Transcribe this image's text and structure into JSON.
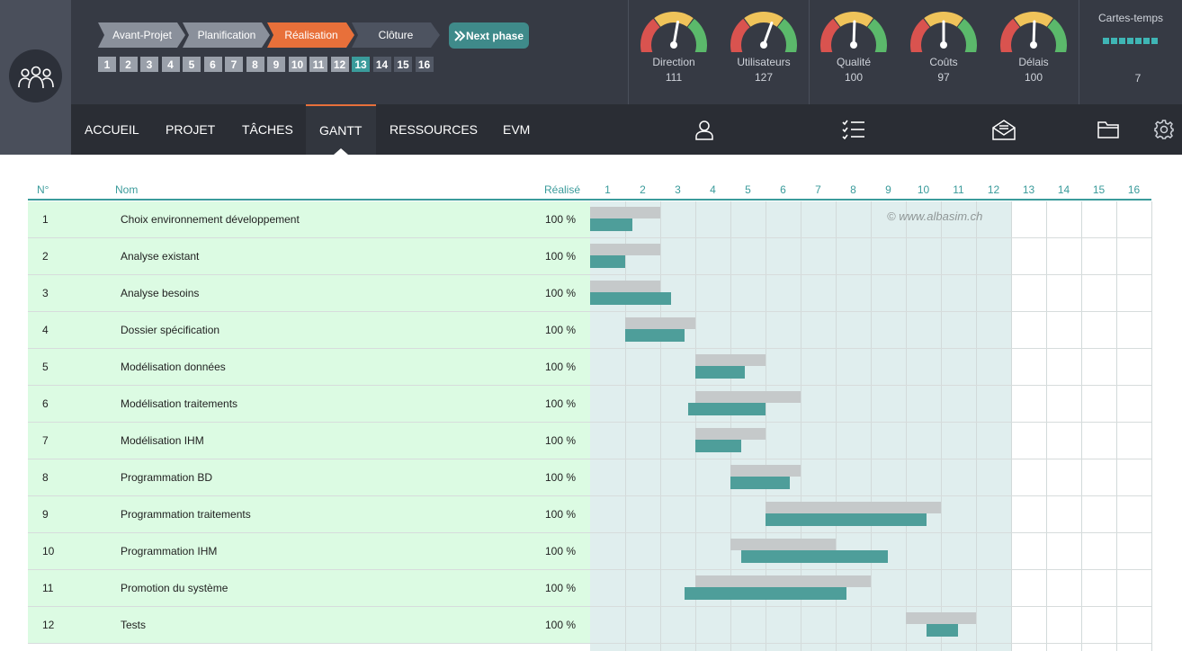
{
  "header": {
    "phases": [
      {
        "label": "Avant-Projet",
        "color": "#8a909b"
      },
      {
        "label": "Planification",
        "color": "#8a909b"
      },
      {
        "label": "Réalisation",
        "color": "#e8703a"
      },
      {
        "label": "Clôture",
        "color": "#4d5360"
      }
    ],
    "next_phase_label": "Next phase",
    "steps": [
      "1",
      "2",
      "3",
      "4",
      "5",
      "6",
      "7",
      "8",
      "9",
      "10",
      "11",
      "12",
      "13",
      "14",
      "15",
      "16"
    ],
    "active_step": "13",
    "gauges": [
      {
        "label": "Direction",
        "value": "111"
      },
      {
        "label": "Utilisateurs",
        "value": "127"
      },
      {
        "label": "Qualité",
        "value": "100"
      },
      {
        "label": "Coûts",
        "value": "97"
      },
      {
        "label": "Délais",
        "value": "100"
      }
    ],
    "cartes_temps": {
      "label": "Cartes-temps",
      "value": "7"
    }
  },
  "nav": {
    "items": [
      "ACCUEIL",
      "PROJET",
      "TÂCHES",
      "GANTT",
      "RESSOURCES",
      "EVM"
    ],
    "active": "GANTT",
    "icons": [
      "user-icon",
      "checklist-icon",
      "mail-icon",
      "folder-icon",
      "gear-icon"
    ]
  },
  "table": {
    "headers": {
      "no": "N°",
      "name": "Nom",
      "realise": "Réalisé"
    },
    "days": [
      "1",
      "2",
      "3",
      "4",
      "5",
      "6",
      "7",
      "8",
      "9",
      "10",
      "11",
      "12",
      "13",
      "14",
      "15",
      "16"
    ],
    "watermark": "© www.albasim.ch",
    "rows": [
      {
        "no": "1",
        "name": "Choix environnement développement",
        "realise": "100 %",
        "plan": [
          1,
          3
        ],
        "real": [
          1,
          2.2
        ]
      },
      {
        "no": "2",
        "name": "Analyse existant",
        "realise": "100 %",
        "plan": [
          1,
          3
        ],
        "real": [
          1,
          2
        ]
      },
      {
        "no": "3",
        "name": "Analyse besoins",
        "realise": "100 %",
        "plan": [
          1,
          3
        ],
        "real": [
          1,
          3.3
        ]
      },
      {
        "no": "4",
        "name": "Dossier spécification",
        "realise": "100 %",
        "plan": [
          2,
          4
        ],
        "real": [
          2,
          3.7
        ]
      },
      {
        "no": "5",
        "name": "Modélisation données",
        "realise": "100 %",
        "plan": [
          4,
          6
        ],
        "real": [
          4,
          5.4
        ]
      },
      {
        "no": "6",
        "name": "Modélisation traitements",
        "realise": "100 %",
        "plan": [
          4,
          7
        ],
        "real": [
          3.8,
          6
        ]
      },
      {
        "no": "7",
        "name": "Modélisation IHM",
        "realise": "100 %",
        "plan": [
          4,
          6
        ],
        "real": [
          4,
          5.3
        ]
      },
      {
        "no": "8",
        "name": "Programmation BD",
        "realise": "100 %",
        "plan": [
          5,
          7
        ],
        "real": [
          5,
          6.7
        ]
      },
      {
        "no": "9",
        "name": "Programmation traitements",
        "realise": "100 %",
        "plan": [
          6,
          11
        ],
        "real": [
          6,
          10.6
        ]
      },
      {
        "no": "10",
        "name": "Programmation IHM",
        "realise": "100 %",
        "plan": [
          5,
          8
        ],
        "real": [
          5.3,
          9.5
        ]
      },
      {
        "no": "11",
        "name": "Promotion du système",
        "realise": "100 %",
        "plan": [
          4,
          9
        ],
        "real": [
          3.7,
          8.3
        ]
      },
      {
        "no": "12",
        "name": "Tests",
        "realise": "100 %",
        "plan": [
          10,
          12
        ],
        "real": [
          10.6,
          11.5
        ]
      }
    ]
  }
}
